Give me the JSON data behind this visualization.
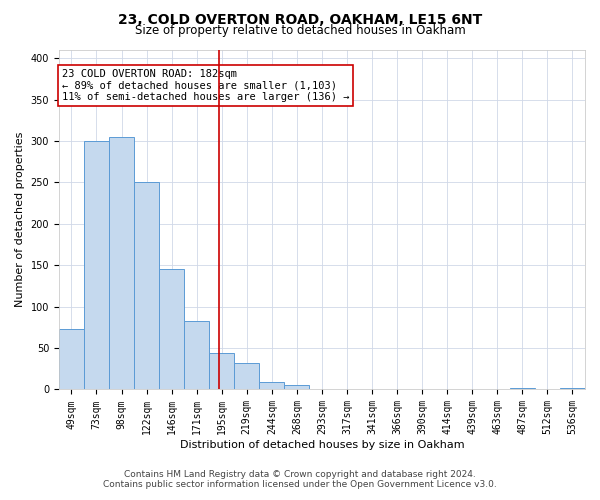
{
  "title": "23, COLD OVERTON ROAD, OAKHAM, LE15 6NT",
  "subtitle": "Size of property relative to detached houses in Oakham",
  "xlabel": "Distribution of detached houses by size in Oakham",
  "ylabel": "Number of detached properties",
  "bar_labels": [
    "49sqm",
    "73sqm",
    "98sqm",
    "122sqm",
    "146sqm",
    "171sqm",
    "195sqm",
    "219sqm",
    "244sqm",
    "268sqm",
    "293sqm",
    "317sqm",
    "341sqm",
    "366sqm",
    "390sqm",
    "414sqm",
    "439sqm",
    "463sqm",
    "487sqm",
    "512sqm",
    "536sqm"
  ],
  "bar_values": [
    73,
    300,
    305,
    250,
    145,
    83,
    44,
    32,
    9,
    6,
    0,
    0,
    0,
    0,
    0,
    0,
    0,
    0,
    2,
    0,
    2
  ],
  "bar_color": "#c5d9ee",
  "bar_edge_color": "#5b9bd5",
  "background_color": "#ffffff",
  "grid_color": "#d0d8e8",
  "vline_x": 5.88,
  "vline_color": "#cc0000",
  "annotation_lines": [
    "23 COLD OVERTON ROAD: 182sqm",
    "← 89% of detached houses are smaller (1,103)",
    "11% of semi-detached houses are larger (136) →"
  ],
  "annotation_box_color": "#ffffff",
  "annotation_box_edge": "#cc0000",
  "ylim": [
    0,
    410
  ],
  "yticks": [
    0,
    50,
    100,
    150,
    200,
    250,
    300,
    350,
    400
  ],
  "footnote1": "Contains HM Land Registry data © Crown copyright and database right 2024.",
  "footnote2": "Contains public sector information licensed under the Open Government Licence v3.0.",
  "title_fontsize": 10,
  "subtitle_fontsize": 8.5,
  "xlabel_fontsize": 8,
  "ylabel_fontsize": 8,
  "tick_fontsize": 7,
  "annotation_fontsize": 7.5,
  "footnote_fontsize": 6.5
}
